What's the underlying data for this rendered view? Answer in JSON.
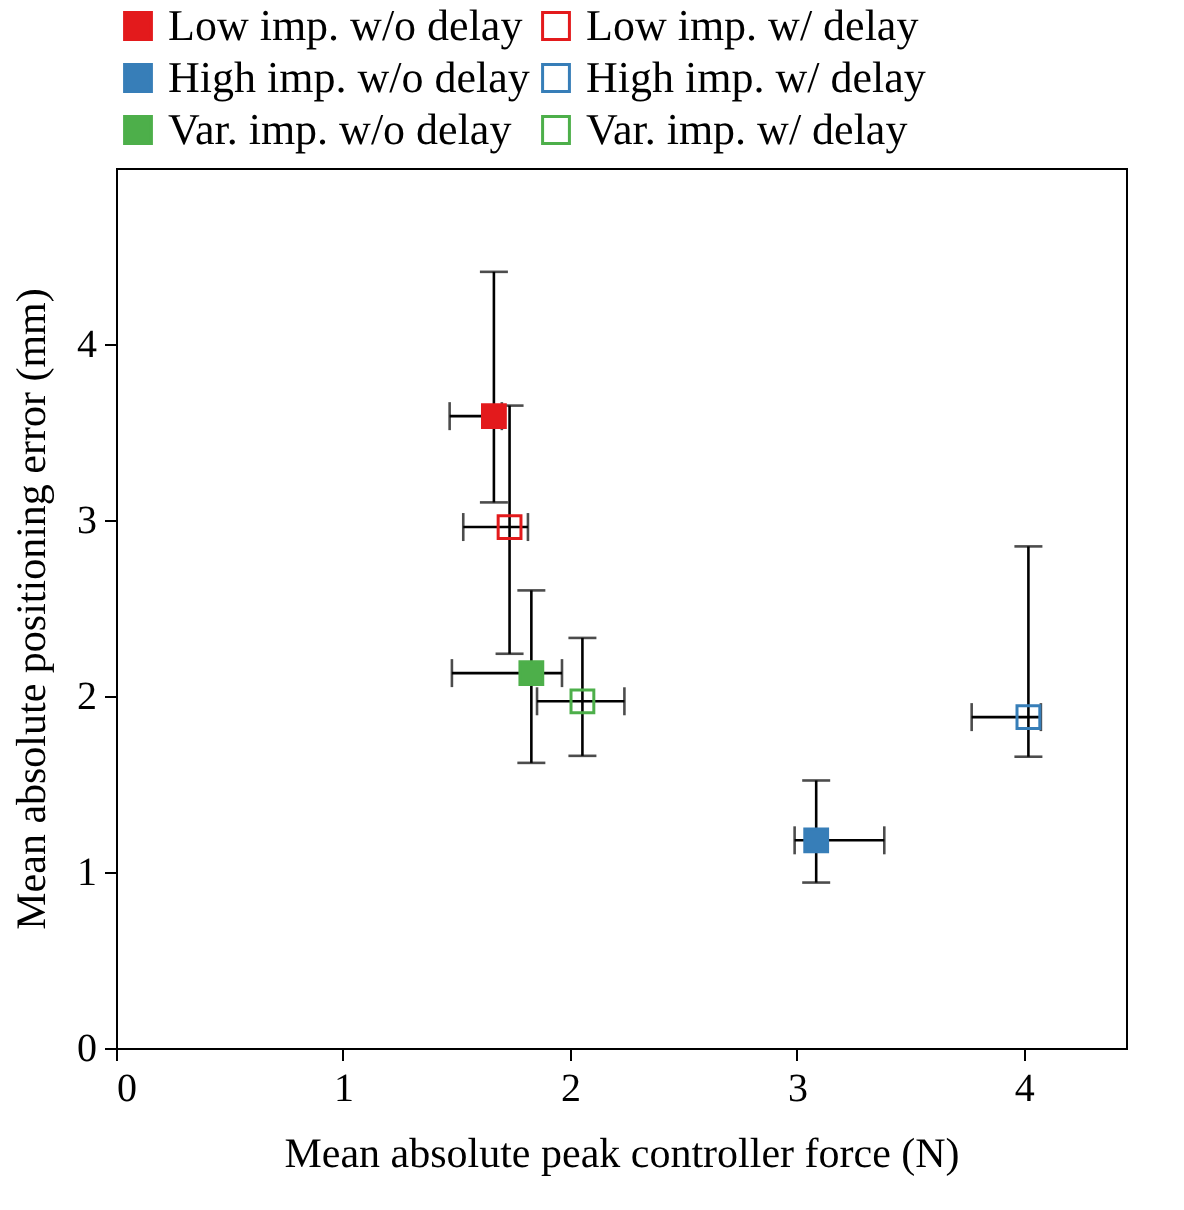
{
  "chart_data": {
    "type": "scatter",
    "xlabel": "Mean absolute peak controller force (N)",
    "ylabel": "Mean absolute positioning error (mm)",
    "xlim": [
      0,
      4.45
    ],
    "ylim": [
      0,
      5
    ],
    "xticks": [
      0,
      1,
      2,
      3,
      4
    ],
    "yticks": [
      0,
      1,
      2,
      3,
      4
    ],
    "grid": false,
    "legend": "top",
    "marker": "square",
    "series": [
      {
        "name": "Low imp. w/o delay",
        "color": "#e31a1c",
        "x": [
          1.665
        ],
        "values": [
          3.59
        ],
        "errors": [
          [
            3.1,
            4.41
          ]
        ],
        "xerrors": [
          [
            1.47,
            1.7
          ]
        ]
      },
      {
        "name": "Low imp. w/ delay",
        "color": "#e31a1c",
        "x": [
          1.734
        ],
        "values": [
          2.96
        ],
        "errors": [
          [
            2.24,
            3.65
          ]
        ],
        "xerrors": [
          [
            1.53,
            1.815
          ]
        ]
      },
      {
        "name": "High imp. w/o delay",
        "color": "#377eb8",
        "x": [
          3.085
        ],
        "values": [
          1.18
        ],
        "errors": [
          [
            0.94,
            1.52
          ]
        ],
        "xerrors": [
          [
            2.99,
            3.385
          ]
        ]
      },
      {
        "name": "High imp. w/ delay",
        "color": "#377eb8",
        "x": [
          4.02
        ],
        "values": [
          1.88
        ],
        "errors": [
          [
            1.655,
            2.85
          ]
        ],
        "xerrors": [
          [
            3.77,
            4.075
          ]
        ]
      },
      {
        "name": "Var. imp. w/o delay",
        "color": "#4daf4a",
        "x": [
          1.83
        ],
        "values": [
          2.13
        ],
        "errors": [
          [
            1.62,
            2.6
          ]
        ],
        "xerrors": [
          [
            1.48,
            1.965
          ]
        ]
      },
      {
        "name": "Var. imp. w/ delay",
        "color": "#4daf4a",
        "x": [
          2.055
        ],
        "values": [
          1.97
        ],
        "errors": [
          [
            1.66,
            2.33
          ]
        ],
        "xerrors": [
          [
            1.855,
            2.24
          ]
        ]
      }
    ]
  }
}
